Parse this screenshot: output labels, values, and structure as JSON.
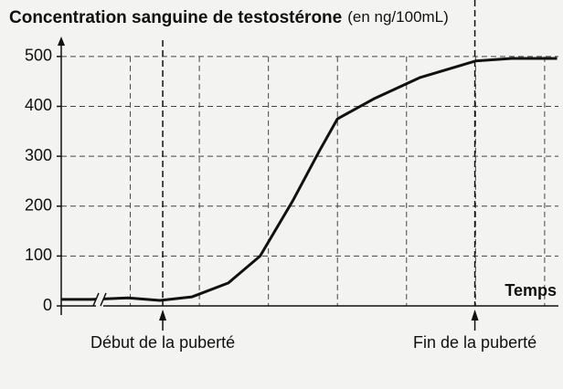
{
  "chart_data": {
    "type": "line",
    "title": "Concentration sanguine de testostérone",
    "y_unit": "(en ng/100mL)",
    "x_label": "Temps",
    "x": [
      0,
      0.44,
      0.97,
      1.43,
      1.89,
      2.42,
      2.88,
      3.35,
      3.74,
      4.0,
      4.54,
      5.2,
      6.0,
      6.52,
      7.18
    ],
    "series": [
      {
        "color": "#111111",
        "values": [
          13,
          13,
          16,
          11,
          18,
          46,
          100,
          210,
          311,
          375,
          416,
          458,
          491,
          496,
          496
        ]
      }
    ],
    "xlim": [
      0,
      7.2
    ],
    "ylim": [
      0,
      540
    ],
    "yticks": [
      0,
      100,
      200,
      300,
      400,
      500
    ],
    "xgrid": [
      1,
      2,
      3,
      4,
      5,
      6,
      7
    ],
    "grid": true,
    "annotations": [
      {
        "x": 1.47,
        "label": "Début de la puberté"
      },
      {
        "x": 5.99,
        "label": "Fin de la puberté"
      }
    ]
  }
}
